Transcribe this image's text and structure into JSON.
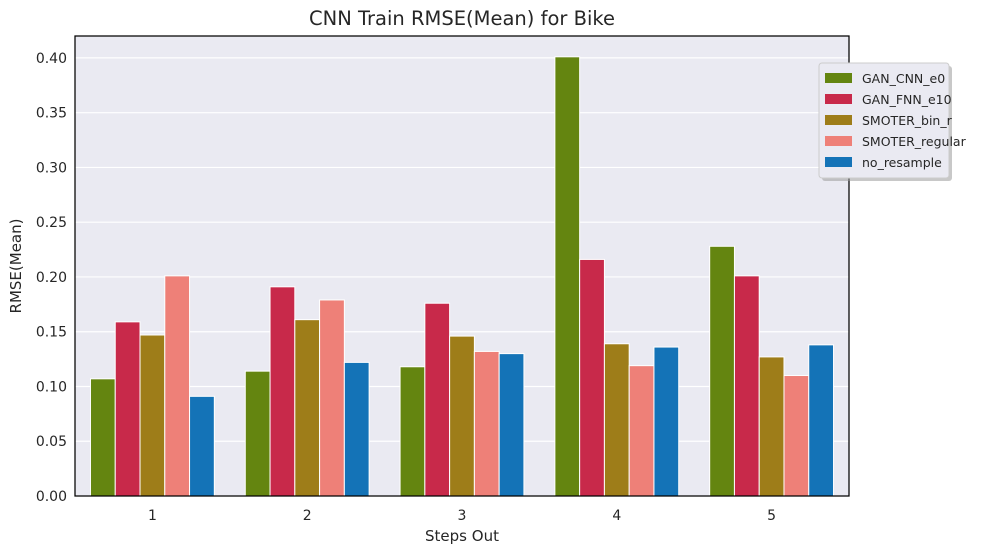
{
  "chart_data": {
    "type": "bar",
    "title": "CNN Train RMSE(Mean) for Bike",
    "xlabel": "Steps Out",
    "ylabel": "RMSE(Mean)",
    "categories": [
      "1",
      "2",
      "3",
      "4",
      "5"
    ],
    "ylim": [
      0,
      0.42
    ],
    "yticks": [
      "0.00",
      "0.05",
      "0.10",
      "0.15",
      "0.20",
      "0.25",
      "0.30",
      "0.35",
      "0.40"
    ],
    "grid": true,
    "legend_position": "upper-right-outside",
    "series": [
      {
        "name": "GAN_CNN_e0",
        "color": "#648510",
        "values": [
          0.107,
          0.114,
          0.118,
          0.401,
          0.228
        ]
      },
      {
        "name": "GAN_FNN_e10",
        "color": "#c8294a",
        "values": [
          0.159,
          0.191,
          0.176,
          0.216,
          0.201
        ]
      },
      {
        "name": "SMOTER_bin_r",
        "color": "#9e7d19",
        "values": [
          0.147,
          0.161,
          0.146,
          0.139,
          0.127
        ]
      },
      {
        "name": "SMOTER_regular",
        "color": "#ee8078",
        "values": [
          0.201,
          0.179,
          0.132,
          0.119,
          0.11
        ]
      },
      {
        "name": "no_resample",
        "color": "#1473b7",
        "values": [
          0.091,
          0.122,
          0.13,
          0.136,
          0.138
        ]
      }
    ]
  }
}
